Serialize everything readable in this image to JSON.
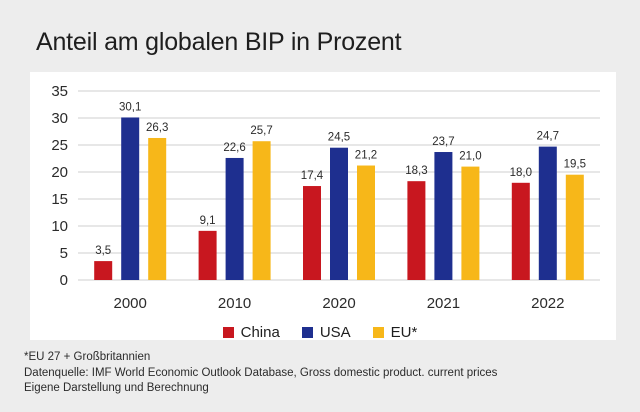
{
  "title": "Anteil am globalen BIP in Prozent",
  "chart_data": {
    "type": "bar",
    "categories": [
      "2000",
      "2010",
      "2020",
      "2021",
      "2022"
    ],
    "series": [
      {
        "name": "China",
        "color": "#c8171f",
        "values": [
          3.5,
          9.1,
          17.4,
          18.3,
          18.0
        ],
        "labels": [
          "3,5",
          "9,1",
          "17,4",
          "18,3",
          "18,0"
        ]
      },
      {
        "name": "USA",
        "color": "#1e2f8f",
        "values": [
          30.1,
          22.6,
          24.5,
          23.7,
          24.7
        ],
        "labels": [
          "30,1",
          "22,6",
          "24,5",
          "23,7",
          "24,7"
        ]
      },
      {
        "name": "EU*",
        "color": "#f7b719",
        "values": [
          26.3,
          25.7,
          21.2,
          21.0,
          19.5
        ],
        "labels": [
          "26,3",
          "25,7",
          "21,2",
          "21,0",
          "19,5"
        ]
      }
    ],
    "ylim": [
      0,
      35
    ],
    "yticks": [
      0,
      5,
      10,
      15,
      20,
      25,
      30,
      35
    ],
    "grid": true,
    "legend_position": "bottom-center"
  },
  "notes": [
    "*EU 27 + Großbritannien",
    "Datenquelle: IMF World Economic Outlook Database, Gross domestic product. current prices",
    "Eigene Darstellung und Berechnung"
  ]
}
